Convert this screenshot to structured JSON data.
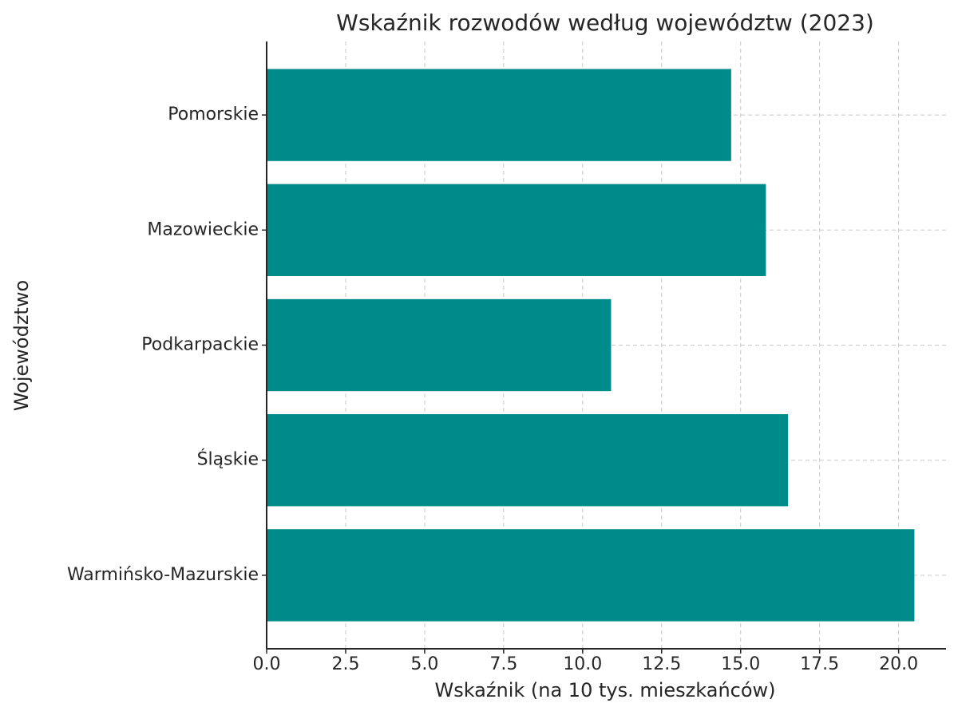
{
  "chart_data": {
    "type": "barh",
    "title": "Wskaźnik rozwodów według województw (2023)",
    "xlabel": "Wskaźnik (na 10 tys. mieszkańców)",
    "ylabel": "Województwo",
    "categories": [
      "Pomorskie",
      "Mazowieckie",
      "Podkarpackie",
      "Śląskie",
      "Warmińsko-Mazurskie"
    ],
    "values": [
      14.7,
      15.8,
      10.9,
      16.5,
      20.5
    ],
    "color": "#008b8b",
    "xlim": [
      0,
      21.5
    ],
    "xticks": [
      {
        "value": 0,
        "label": "0.0"
      },
      2.5,
      {
        "value": 5,
        "label": "5.0"
      },
      7.5,
      {
        "value": 10,
        "label": "10.0"
      },
      12.5,
      {
        "value": 15,
        "label": "15.0"
      },
      17.5,
      {
        "value": 20,
        "label": "20.0"
      }
    ],
    "grid": true
  }
}
